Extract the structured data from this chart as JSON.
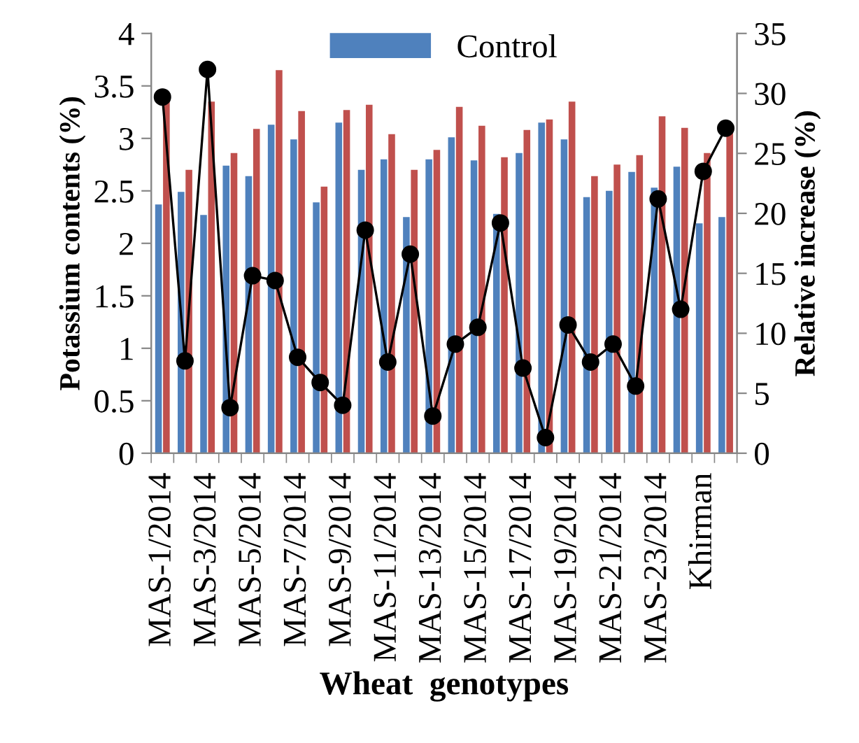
{
  "chart_data": {
    "type": "bar",
    "xlabel": "Wheat  genotypes",
    "ylabel": "Potassium contents (%)",
    "y2label": "Relative increase (%)",
    "categories": [
      "MAS-1/2014",
      null,
      "MAS-3/2014",
      null,
      "MAS-5/2014",
      null,
      "MAS-7/2014",
      null,
      "MAS-9/2014",
      null,
      "MAS-11/2014",
      null,
      "MAS-13/2014",
      null,
      "MAS-15/2014",
      null,
      "MAS-17/2014",
      null,
      "MAS-19/2014",
      null,
      "MAS-21/2014",
      null,
      "MAS-23/2014",
      null,
      "Khirman",
      null
    ],
    "series": [
      {
        "name": "Control",
        "color": "#4f81bd",
        "values": [
          2.37,
          2.49,
          2.27,
          2.74,
          2.64,
          3.13,
          2.99,
          2.39,
          3.15,
          2.7,
          2.8,
          2.25,
          2.8,
          3.01,
          2.79,
          2.28,
          2.86,
          3.15,
          2.99,
          2.44,
          2.5,
          2.68,
          2.53,
          2.73,
          2.19,
          2.25
        ]
      },
      {
        "color": "#c0504d",
        "values": [
          3.36,
          2.7,
          3.35,
          2.86,
          3.09,
          3.65,
          3.26,
          2.54,
          3.27,
          3.32,
          3.04,
          2.7,
          2.89,
          3.3,
          3.12,
          2.82,
          3.08,
          3.18,
          3.35,
          2.64,
          2.75,
          2.84,
          3.21,
          3.1,
          2.86,
          3.06
        ]
      },
      {
        "type": "line",
        "axis": "y2",
        "color": "#000000",
        "marker": "circle",
        "line_style": "solid",
        "values": [
          29.7,
          7.7,
          32.0,
          3.8,
          14.8,
          14.4,
          8.0,
          5.9,
          4.0,
          18.6,
          7.6,
          16.6,
          3.1,
          9.1,
          10.5,
          19.2,
          7.1,
          1.3,
          10.7,
          7.6,
          9.1,
          5.6,
          21.2,
          12.0,
          23.5,
          27.1
        ]
      }
    ],
    "ylim": [
      0,
      4
    ],
    "yticks": [
      0,
      0.5,
      1,
      1.5,
      2,
      2.5,
      3,
      3.5,
      4
    ],
    "y2lim": [
      0,
      35
    ],
    "y2ticks": [
      0,
      5,
      10,
      15,
      20,
      25,
      30,
      35
    ],
    "grid": false,
    "legend": "top"
  }
}
